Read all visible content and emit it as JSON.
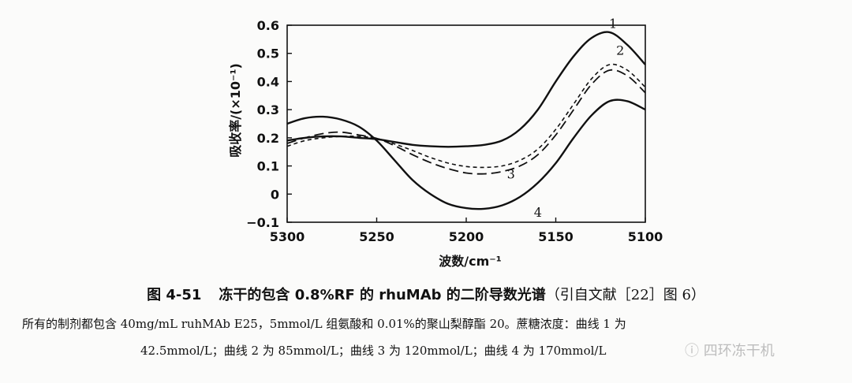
{
  "chart_data": {
    "type": "line",
    "title": "",
    "xlabel": "波数/cm⁻¹",
    "ylabel": "吸收率/(×10⁻¹)",
    "xlim": [
      5300,
      5100
    ],
    "ylim": [
      -0.1,
      0.6
    ],
    "x_ticks": [
      "5300",
      "5250",
      "5200",
      "5150",
      "5100"
    ],
    "y_ticks": [
      "0.6",
      "0.5",
      "0.4",
      "0.3",
      "0.2",
      "0.1",
      "0",
      "−0.1"
    ],
    "x": [
      5300,
      5290,
      5280,
      5270,
      5260,
      5250,
      5240,
      5230,
      5220,
      5210,
      5200,
      5190,
      5180,
      5170,
      5160,
      5150,
      5140,
      5130,
      5120,
      5110,
      5100
    ],
    "series": [
      {
        "name": "1",
        "label": "1",
        "style": "solid",
        "values": [
          0.19,
          0.2,
          0.205,
          0.205,
          0.2,
          0.195,
          0.185,
          0.175,
          0.17,
          0.168,
          0.17,
          0.175,
          0.19,
          0.23,
          0.3,
          0.4,
          0.49,
          0.555,
          0.575,
          0.53,
          0.46
        ]
      },
      {
        "name": "2",
        "label": "2",
        "style": "dashed-fine",
        "values": [
          0.17,
          0.19,
          0.2,
          0.205,
          0.205,
          0.198,
          0.178,
          0.155,
          0.13,
          0.11,
          0.098,
          0.095,
          0.1,
          0.12,
          0.16,
          0.23,
          0.32,
          0.41,
          0.46,
          0.44,
          0.38
        ]
      },
      {
        "name": "3",
        "label": "3",
        "style": "dashed",
        "values": [
          0.18,
          0.2,
          0.215,
          0.22,
          0.21,
          0.198,
          0.172,
          0.14,
          0.112,
          0.09,
          0.075,
          0.072,
          0.08,
          0.1,
          0.14,
          0.21,
          0.3,
          0.39,
          0.44,
          0.42,
          0.36
        ]
      },
      {
        "name": "4",
        "label": "4",
        "style": "solid",
        "values": [
          0.25,
          0.27,
          0.275,
          0.265,
          0.24,
          0.19,
          0.12,
          0.05,
          0.0,
          -0.035,
          -0.05,
          -0.052,
          -0.04,
          -0.01,
          0.04,
          0.11,
          0.2,
          0.28,
          0.33,
          0.33,
          0.3
        ]
      }
    ]
  },
  "caption": {
    "figure_number": "图 4-51",
    "title": "冻干的包含 0.8%RF 的 rhuMAb 的二阶导数光谱",
    "source": "（引自文献［22］图 6）"
  },
  "notes": {
    "line1": "所有的制剂都包含 40mg/mL ruhMAb E25，5mmol/L 组氨酸和 0.01%的聚山梨醇酯 20。蔗糖浓度：曲线 1 为",
    "line2": "42.5mmol/L；曲线 2 为 85mmol/L；曲线 3 为 120mmol/L；曲线 4 为 170mmol/L"
  },
  "watermark": "ⓘ 四环冻干机"
}
